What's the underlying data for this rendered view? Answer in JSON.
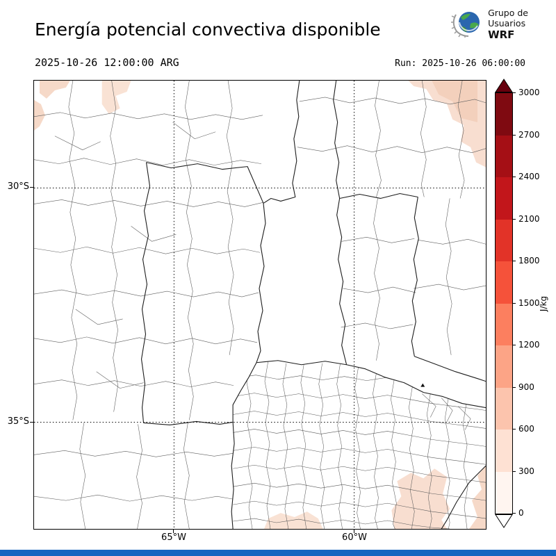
{
  "header": {
    "title": "Energía potencial convectiva disponible",
    "valid_time": "2025-10-26 12:00:00 ARG",
    "run_label": "Run: 2025-10-26 06:00:00",
    "logo": {
      "line1": "Grupo de",
      "line2": "Usuarios",
      "line3": "WRF"
    }
  },
  "map": {
    "lat_ticks": [
      "30°S",
      "35°S"
    ],
    "lon_ticks": [
      "65°W",
      "60°W"
    ]
  },
  "colorbar": {
    "unit": "J/kg",
    "tick_labels_top_to_bottom": [
      "3000",
      "2700",
      "2400",
      "2100",
      "1800",
      "1500",
      "1200",
      "900",
      "600",
      "300",
      "0"
    ],
    "segment_colors_top_to_bottom": [
      "#7f0a11",
      "#a50f15",
      "#c2161b",
      "#e23328",
      "#f5523a",
      "#fc7f5f",
      "#fca486",
      "#fcc4ad",
      "#fee1d3",
      "#fff5f0"
    ],
    "over_arrow_color": "#67000d",
    "under_arrow_color": "#ffffff"
  },
  "footer": {
    "bar_color": "#1565c0"
  },
  "chart_data": {
    "type": "heatmap",
    "title": "Energía potencial convectiva disponible",
    "units": "J/kg",
    "levels": [
      0,
      300,
      600,
      900,
      1200,
      1500,
      1800,
      2100,
      2400,
      2700,
      3000
    ],
    "colormap": "Reds",
    "lat_ticks": [
      "30°S",
      "35°S"
    ],
    "lon_ticks": [
      "65°W",
      "60°W"
    ],
    "field_summary": "CAPE mostly below 300 J/kg over central Argentina; light shading of roughly 300–600 J/kg in the northwest corner, northeast corner, southeast corner and along the south-central edge of the domain",
    "shading_colors": [
      "#fbe9dd",
      "#f6d9c8"
    ]
  }
}
